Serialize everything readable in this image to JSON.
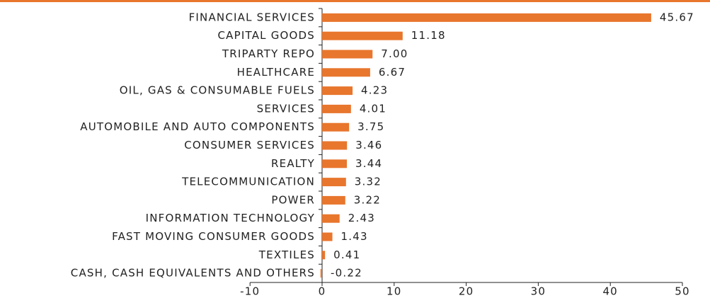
{
  "chart_data": {
    "type": "bar",
    "orientation": "horizontal",
    "categories": [
      "FINANCIAL SERVICES",
      "CAPITAL GOODS",
      "TRIPARTY REPO",
      "HEALTHCARE",
      "OIL, GAS & CONSUMABLE FUELS",
      "SERVICES",
      "AUTOMOBILE AND AUTO COMPONENTS",
      "CONSUMER SERVICES",
      "REALTY",
      "TELECOMMUNICATION",
      "POWER",
      "INFORMATION TECHNOLOGY",
      "FAST MOVING CONSUMER GOODS",
      "TEXTILES",
      "CASH, CASH EQUIVALENTS AND OTHERS"
    ],
    "values": [
      45.67,
      11.18,
      7.0,
      6.67,
      4.23,
      4.01,
      3.75,
      3.46,
      3.44,
      3.32,
      3.22,
      2.43,
      1.43,
      0.41,
      -0.22
    ],
    "value_labels": [
      "45.67",
      "11.18",
      "7.00",
      "6.67",
      "4.23",
      "4.01",
      "3.75",
      "3.46",
      "3.44",
      "3.32",
      "3.22",
      "2.43",
      "1.43",
      "0.41",
      "-0.22"
    ],
    "color": "#e8762d",
    "xlim": [
      -10,
      50
    ],
    "xticks": [
      -10,
      0,
      10,
      20,
      30,
      40,
      50
    ],
    "grid": false
  }
}
